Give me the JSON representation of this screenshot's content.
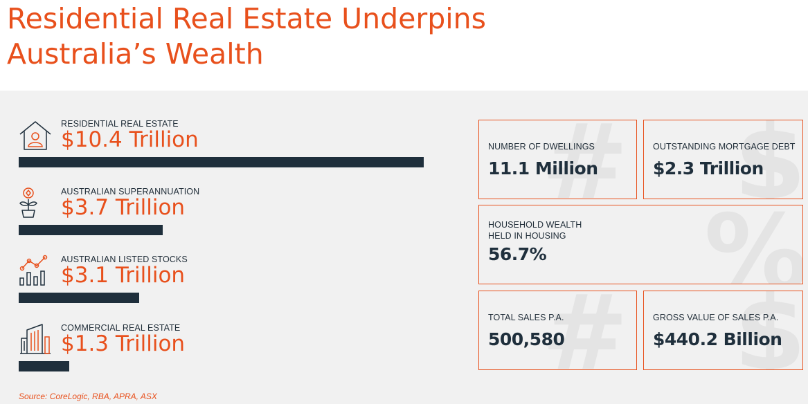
{
  "title_line1": "Residential Real Estate Underpins",
  "title_line2": "Australia’s Wealth",
  "colors": {
    "accent": "#e8501c",
    "bar": "#1f2f3c",
    "panel": "#f1f1f1"
  },
  "chart_data": {
    "type": "bar",
    "orientation": "horizontal",
    "categories": [
      "RESIDENTIAL REAL ESTATE",
      "AUSTRALIAN SUPERANNUATION",
      "AUSTRALIAN LISTED STOCKS",
      "COMMERCIAL REAL ESTATE"
    ],
    "values": [
      10.4,
      3.7,
      3.1,
      1.3
    ],
    "value_labels": [
      "$10.4 Trillion",
      "$3.7 Trillion",
      "$3.1 Trillion",
      "$1.3 Trillion"
    ],
    "icons": [
      "house-person-icon",
      "plant-coin-icon",
      "stock-chart-icon",
      "building-icon"
    ],
    "xlim": [
      0,
      10.4
    ],
    "grid": false
  },
  "stats": {
    "dwellings": {
      "label": "NUMBER OF DWELLINGS",
      "value": "11.1 Million",
      "bg_glyph": "#"
    },
    "mortgage": {
      "label": "OUTSTANDING MORTGAGE DEBT",
      "value": "$2.3 Trillion",
      "bg_glyph": "$"
    },
    "household": {
      "label_line1": "HOUSEHOLD WEALTH",
      "label_line2": "HELD IN HOUSING",
      "value": "56.7%",
      "bg_glyph": "%"
    },
    "sales": {
      "label": "TOTAL SALES P.A.",
      "value": "500,580",
      "bg_glyph": "#"
    },
    "gross": {
      "label": "GROSS VALUE OF SALES P.A.",
      "value": "$440.2 Billion",
      "bg_glyph": "$"
    }
  },
  "source": "Source: CoreLogic, RBA, APRA, ASX"
}
